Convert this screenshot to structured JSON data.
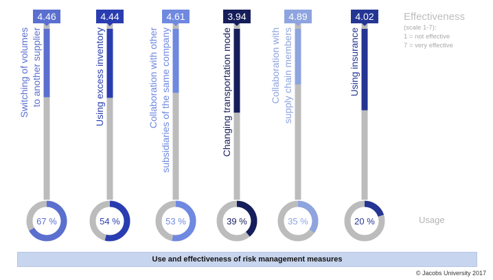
{
  "chart_data": {
    "type": "bar",
    "categories": [
      "Switching of volumes to another supplier",
      "Using excess inventory",
      "Collaboration with other subsidiaries of the same company",
      "Changing transportation mode",
      "Collaboration with supply chain members",
      "Using insurance"
    ],
    "category_lines": [
      [
        "Switching of volumes",
        "to another supplier"
      ],
      [
        "Using excess inventory"
      ],
      [
        "Collaboration with other",
        "subsidiaries of the same company"
      ],
      [
        "Changing transportation mode"
      ],
      [
        "Collaboration with",
        "supply chain members"
      ],
      [
        "Using insurance"
      ]
    ],
    "effectiveness": [
      4.46,
      4.44,
      4.61,
      3.94,
      4.89,
      4.02
    ],
    "effectiveness_labels": [
      "4.46",
      "4.44",
      "4.61",
      "3.94",
      "4.89",
      "4.02"
    ],
    "usage_percent": [
      67,
      54,
      53,
      39,
      35,
      20
    ],
    "usage_labels": [
      "67 %",
      "54 %",
      "53 %",
      "39 %",
      "35 %",
      "20 %"
    ],
    "scale": [
      1,
      7
    ],
    "colors": [
      "#5b6fcf",
      "#2a3db0",
      "#6f88e0",
      "#151e5a",
      "#8ea4df",
      "#253594"
    ],
    "track_color": "#bcbcbc",
    "legend": {
      "title": "Effectiveness",
      "lines": [
        "(scale 1-7):",
        "1 = not effective",
        "7 = very effective"
      ]
    },
    "usage_label": "Usage",
    "footer_title": "Use and effectiveness of risk management measures",
    "copyright": "© Jacobs University 2017"
  }
}
